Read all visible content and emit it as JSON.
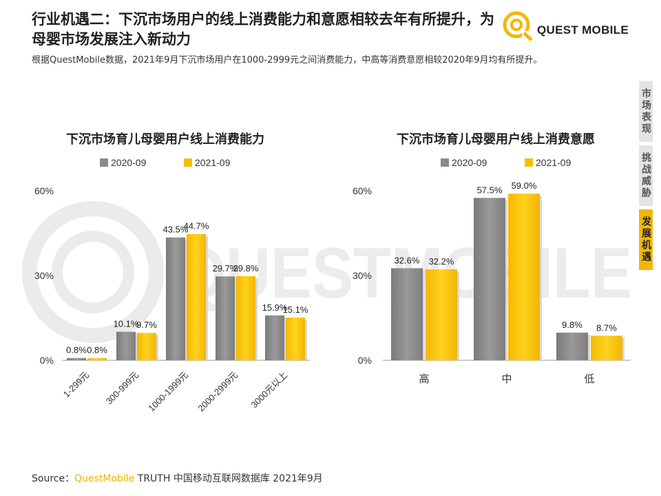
{
  "header": {
    "title": "行业机遇二：下沉市场用户的线上消费能力和意愿相较去年有所提升，为母婴市场发展注入新动力",
    "subtitle": "根据QuestMobile数据，2021年9月下沉市场用户在1000-2999元之间消费能力，中高等消费意愿相较2020年9月均有所提升。"
  },
  "logo": {
    "text": "QUEST MOBILE"
  },
  "watermark": {
    "text": "QUESTMOBILE"
  },
  "side_nav": {
    "items": [
      {
        "label": "市场表现"
      },
      {
        "label": "挑战威胁"
      },
      {
        "label": "发展机遇"
      }
    ]
  },
  "colors": {
    "gray_series": "#8a8a8a",
    "yellow_series": "#f7bf00",
    "accent": "#f2b705"
  },
  "chart_data": [
    {
      "type": "bar",
      "title": "下沉市场育儿母婴用户线上消费能力",
      "categories": [
        "1-299元",
        "300-999元",
        "1000-1999元",
        "2000-2999元",
        "3000元以上"
      ],
      "series": [
        {
          "name": "2020-09",
          "values": [
            0.8,
            10.1,
            43.5,
            29.7,
            15.9
          ],
          "labels": [
            "0.8%",
            "10.1%",
            "43.5%",
            "29.7%",
            "15.9%"
          ]
        },
        {
          "name": "2021-09",
          "values": [
            0.8,
            9.7,
            44.7,
            29.8,
            15.1
          ],
          "labels": [
            "0.8%",
            "9.7%",
            "44.7%",
            "29.8%",
            "15.1%"
          ]
        }
      ],
      "yticks": [
        "0%",
        "30%",
        "60%"
      ],
      "ylim": [
        0,
        60
      ],
      "legend": "top"
    },
    {
      "type": "bar",
      "title": "下沉市场育儿母婴用户线上消费意愿",
      "categories": [
        "高",
        "中",
        "低"
      ],
      "series": [
        {
          "name": "2020-09",
          "values": [
            32.6,
            57.5,
            9.8
          ],
          "labels": [
            "32.6%",
            "57.5%",
            "9.8%"
          ]
        },
        {
          "name": "2021-09",
          "values": [
            32.2,
            59.0,
            8.7
          ],
          "labels": [
            "32.2%",
            "59.0%",
            "8.7%"
          ]
        }
      ],
      "yticks": [
        "0%",
        "30%",
        "60%"
      ],
      "ylim": [
        0,
        60
      ],
      "legend": "top"
    }
  ],
  "footer": {
    "source_prefix": "Source：",
    "source_brand": "QuestMobile",
    "source_rest": " TRUTH 中国移动互联网数据库 2021年9月"
  }
}
